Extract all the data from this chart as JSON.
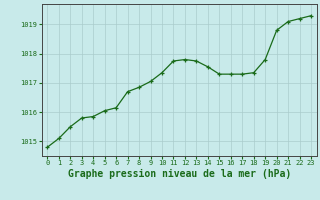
{
  "x": [
    0,
    1,
    2,
    3,
    4,
    5,
    6,
    7,
    8,
    9,
    10,
    11,
    12,
    13,
    14,
    15,
    16,
    17,
    18,
    19,
    20,
    21,
    22,
    23
  ],
  "y": [
    1014.8,
    1015.1,
    1015.5,
    1015.8,
    1015.85,
    1016.05,
    1016.15,
    1016.7,
    1016.85,
    1017.05,
    1017.35,
    1017.75,
    1017.8,
    1017.75,
    1017.55,
    1017.3,
    1017.3,
    1017.3,
    1017.35,
    1017.8,
    1018.8,
    1019.1,
    1019.2,
    1019.3
  ],
  "line_color": "#1a6b1a",
  "marker": "+",
  "marker_size": 3,
  "background_color": "#c8eaea",
  "grid_color": "#aacccc",
  "xlabel": "Graphe pression niveau de la mer (hPa)",
  "xlabel_color": "#1a6b1a",
  "xlabel_fontsize": 7,
  "tick_color": "#1a6b1a",
  "tick_fontsize": 5,
  "ylim": [
    1014.5,
    1019.7
  ],
  "yticks": [
    1015,
    1016,
    1017,
    1018,
    1019
  ],
  "xlim": [
    -0.5,
    23.5
  ],
  "xticks": [
    0,
    1,
    2,
    3,
    4,
    5,
    6,
    7,
    8,
    9,
    10,
    11,
    12,
    13,
    14,
    15,
    16,
    17,
    18,
    19,
    20,
    21,
    22,
    23
  ]
}
